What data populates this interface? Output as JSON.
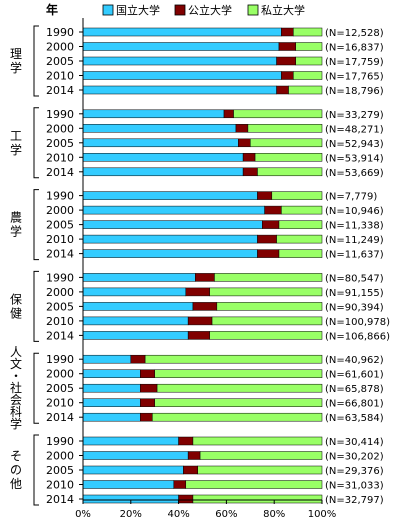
{
  "chart_data": {
    "type": "bar",
    "orientation": "horizontal",
    "stacked": true,
    "stack_to_100_percent": true,
    "year_header": "年",
    "legend": {
      "placement": "top",
      "entries": [
        {
          "name": "国立大学",
          "color": "#33CCFF"
        },
        {
          "name": "公立大学",
          "color": "#800000"
        },
        {
          "name": "私立大学",
          "color": "#99FF66"
        }
      ]
    },
    "x_axis": {
      "range": [
        0,
        100
      ],
      "ticks": [
        0,
        20,
        40,
        60,
        80,
        100
      ],
      "tick_labels": [
        "0%",
        "20%",
        "40%",
        "60%",
        "80%",
        "100%"
      ]
    },
    "grid": false,
    "groups": [
      {
        "label": "理学",
        "rows": [
          {
            "year": "1990",
            "values": [
              83,
              5,
              12
            ],
            "n": "(N=12,528)"
          },
          {
            "year": "2000",
            "values": [
              82,
              7,
              11
            ],
            "n": "(N=16,837)"
          },
          {
            "year": "2005",
            "values": [
              81,
              8,
              11
            ],
            "n": "(N=17,759)"
          },
          {
            "year": "2010",
            "values": [
              83,
              5,
              12
            ],
            "n": "(N=17,765)"
          },
          {
            "year": "2014",
            "values": [
              81,
              5,
              14
            ],
            "n": "(N=18,796)"
          }
        ]
      },
      {
        "label": "工学",
        "rows": [
          {
            "year": "1990",
            "values": [
              59,
              4,
              37
            ],
            "n": "(N=33,279)"
          },
          {
            "year": "2000",
            "values": [
              64,
              5,
              31
            ],
            "n": "(N=48,271)"
          },
          {
            "year": "2005",
            "values": [
              65,
              5,
              30
            ],
            "n": "(N=52,943)"
          },
          {
            "year": "2010",
            "values": [
              67,
              5,
              28
            ],
            "n": "(N=53,914)"
          },
          {
            "year": "2014",
            "values": [
              67,
              6,
              27
            ],
            "n": "(N=53,669)"
          }
        ]
      },
      {
        "label": "農学",
        "rows": [
          {
            "year": "1990",
            "values": [
              73,
              6,
              21
            ],
            "n": "(N=7,779)"
          },
          {
            "year": "2000",
            "values": [
              76,
              7,
              17
            ],
            "n": "(N=10,946)"
          },
          {
            "year": "2005",
            "values": [
              75,
              7,
              18
            ],
            "n": "(N=11,338)"
          },
          {
            "year": "2010",
            "values": [
              73,
              8,
              19
            ],
            "n": "(N=11,249)"
          },
          {
            "year": "2014",
            "values": [
              73,
              9,
              18
            ],
            "n": "(N=11,637)"
          }
        ]
      },
      {
        "label": "保健",
        "rows": [
          {
            "year": "1990",
            "values": [
              47,
              8,
              45
            ],
            "n": "(N=80,547)"
          },
          {
            "year": "2000",
            "values": [
              43,
              10,
              47
            ],
            "n": "(N=91,155)"
          },
          {
            "year": "2005",
            "values": [
              46,
              10,
              44
            ],
            "n": "(N=90,394)"
          },
          {
            "year": "2010",
            "values": [
              44,
              10,
              46
            ],
            "n": "(N=100,978)"
          },
          {
            "year": "2014",
            "values": [
              44,
              9,
              47
            ],
            "n": "(N=106,866)"
          }
        ]
      },
      {
        "label": "人文・社会科学",
        "rows": [
          {
            "year": "1990",
            "values": [
              20,
              6,
              74
            ],
            "n": "(N=40,962)"
          },
          {
            "year": "2000",
            "values": [
              24,
              6,
              70
            ],
            "n": "(N=61,601)"
          },
          {
            "year": "2005",
            "values": [
              24,
              7,
              69
            ],
            "n": "(N=65,878)"
          },
          {
            "year": "2010",
            "values": [
              24,
              6,
              70
            ],
            "n": "(N=66,801)"
          },
          {
            "year": "2014",
            "values": [
              24,
              5,
              71
            ],
            "n": "(N=63,584)"
          }
        ]
      },
      {
        "label": "その他",
        "rows": [
          {
            "year": "1990",
            "values": [
              40,
              6,
              54
            ],
            "n": "(N=30,414)"
          },
          {
            "year": "2000",
            "values": [
              44,
              5,
              51
            ],
            "n": "(N=30,202)"
          },
          {
            "year": "2005",
            "values": [
              42,
              6,
              52
            ],
            "n": "(N=29,376)"
          },
          {
            "year": "2010",
            "values": [
              38,
              5,
              57
            ],
            "n": "(N=31,033)"
          },
          {
            "year": "2014",
            "values": [
              40,
              6,
              54
            ],
            "n": "(N=32,797)"
          }
        ]
      }
    ]
  }
}
